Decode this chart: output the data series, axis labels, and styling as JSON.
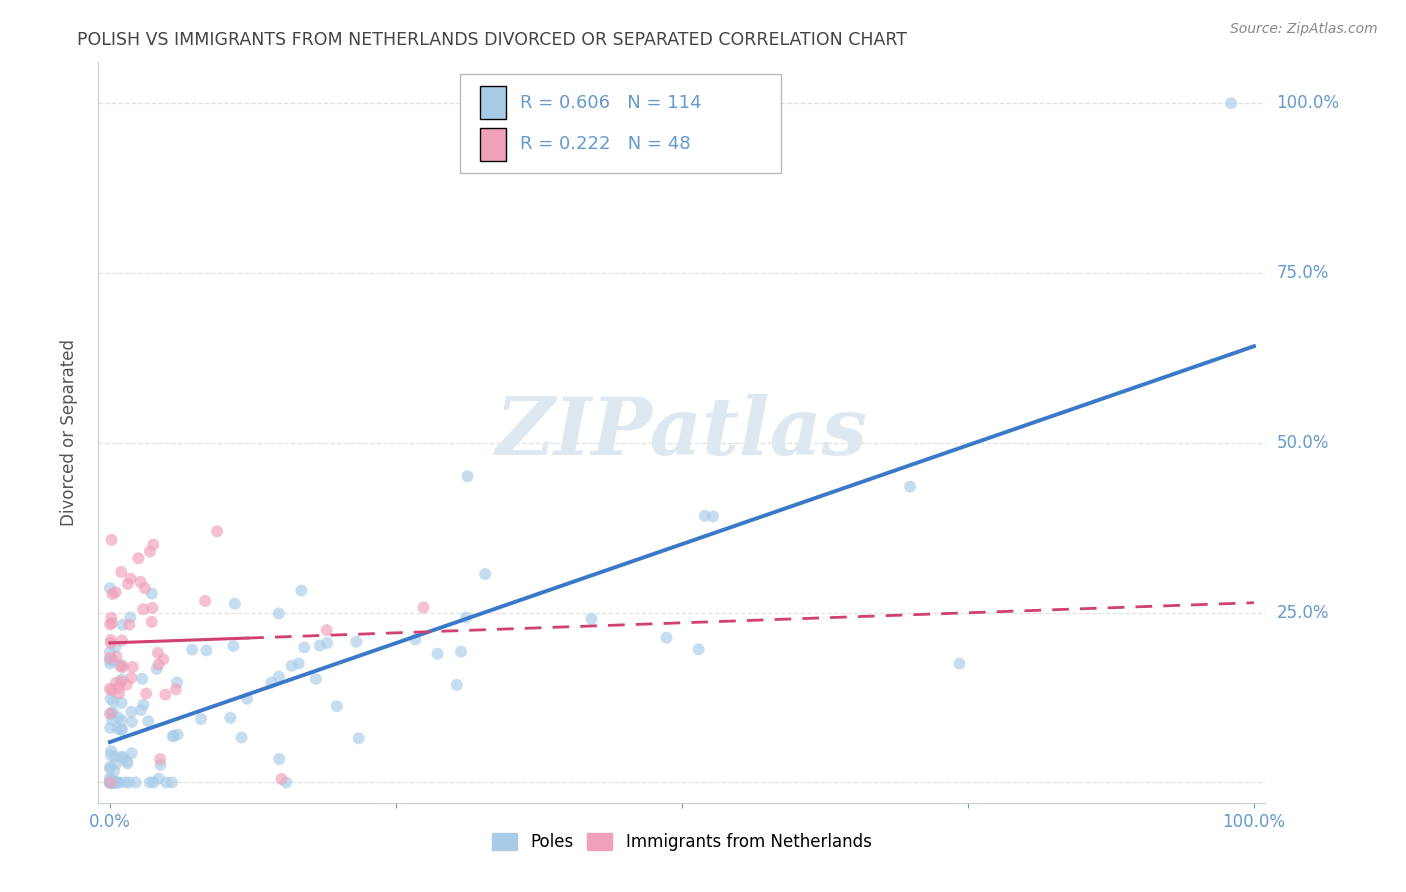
{
  "title": "POLISH VS IMMIGRANTS FROM NETHERLANDS DIVORCED OR SEPARATED CORRELATION CHART",
  "source": "Source: ZipAtlas.com",
  "ylabel": "Divorced or Separated",
  "legend_label1": "Poles",
  "legend_label2": "Immigrants from Netherlands",
  "R1": "0.606",
  "N1": "114",
  "R2": "0.222",
  "N2": "48",
  "color_blue": "#A8CCE8",
  "color_pink": "#F0A0B8",
  "line_color_blue": "#3A78C9",
  "line_color_pink": "#D04070",
  "background_color": "#FFFFFF",
  "grid_color": "#DDDDDD",
  "title_color": "#444444",
  "axis_label_color": "#6699CC",
  "watermark_color": "#DDE8F0",
  "poles_seed": 77,
  "neth_seed": 99
}
